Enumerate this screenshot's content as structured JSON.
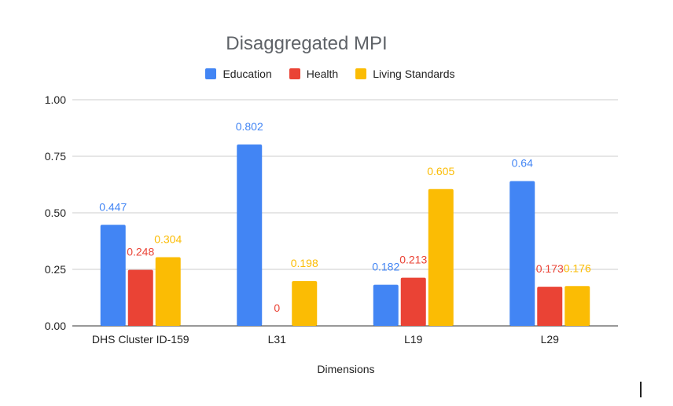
{
  "chart_data": {
    "type": "bar",
    "title": "Disaggregated MPI",
    "xlabel": "Dimensions",
    "ylabel": "",
    "categories": [
      "DHS Cluster ID-159",
      "L31",
      "L19",
      "L29"
    ],
    "series": [
      {
        "name": "Education",
        "color": "#4285f4",
        "values": [
          0.447,
          0.802,
          0.182,
          0.64
        ]
      },
      {
        "name": "Health",
        "color": "#ea4335",
        "values": [
          0.248,
          0,
          0.213,
          0.173
        ]
      },
      {
        "name": "Living Standards",
        "color": "#fbbc04",
        "values": [
          0.304,
          0.198,
          0.605,
          0.176
        ]
      }
    ],
    "ylim": [
      0,
      1
    ],
    "yticks": [
      "0.00",
      "0.25",
      "0.50",
      "0.75",
      "1.00"
    ],
    "grid": true,
    "legend_position": "top"
  }
}
